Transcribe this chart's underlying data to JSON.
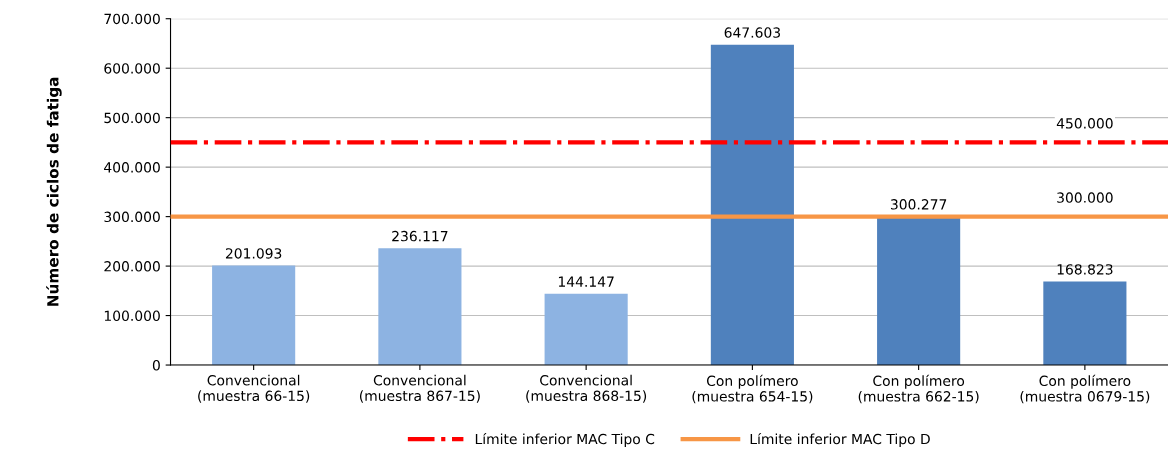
{
  "chart_data": {
    "type": "bar",
    "ylabel": "Número de ciclos de fatiga",
    "categories": [
      "Convencional\n(muestra 66-15)",
      "Convencional\n(muestra 867-15)",
      "Convencional\n(muestra 868-15)",
      "Con polímero\n(muestra 654-15)",
      "Con polímero\n(muestra 662-15)",
      "Con polímero\n(muestra 0679-15)"
    ],
    "values": [
      201093,
      236117,
      144147,
      647603,
      300277,
      168823
    ],
    "colors": [
      "#8db3e2",
      "#8db3e2",
      "#8db3e2",
      "#4f81bd",
      "#4f81bd",
      "#4f81bd"
    ],
    "value_labels": [
      "201.093",
      "236.117",
      "144.147",
      "647.603",
      "300.277",
      "168.823"
    ],
    "ylim": [
      0,
      700000
    ],
    "yticks": [
      0,
      {
        "value": 100000,
        "label": "100.000"
      },
      {
        "value": 200000,
        "label": "200.000"
      },
      {
        "value": 300000,
        "label": "300.000"
      },
      {
        "value": 400000,
        "label": "400.000"
      },
      {
        "value": 500000,
        "label": "500.000"
      },
      {
        "value": 600000,
        "label": "600.000"
      },
      {
        "value": 700000,
        "label": "700.000"
      }
    ],
    "ref_lines": [
      {
        "axis": "y",
        "value": 450000,
        "label": "Límite inferior MAC Tipo C",
        "color": "#ff0000",
        "line_style": "dashdot"
      },
      {
        "axis": "y",
        "value": 300000,
        "label": "Límite inferior MAC Tipo D",
        "color": "#f79646",
        "line_style": "solid"
      }
    ],
    "annotations": [
      {
        "text": "450.000",
        "x": "Con polímero\n(muestra 0679-15)",
        "y": 450000
      },
      {
        "text": "300.000",
        "x": "Con polímero\n(muestra 0679-15)",
        "y": 300000
      }
    ],
    "grid": "y",
    "legend": "bottom"
  }
}
